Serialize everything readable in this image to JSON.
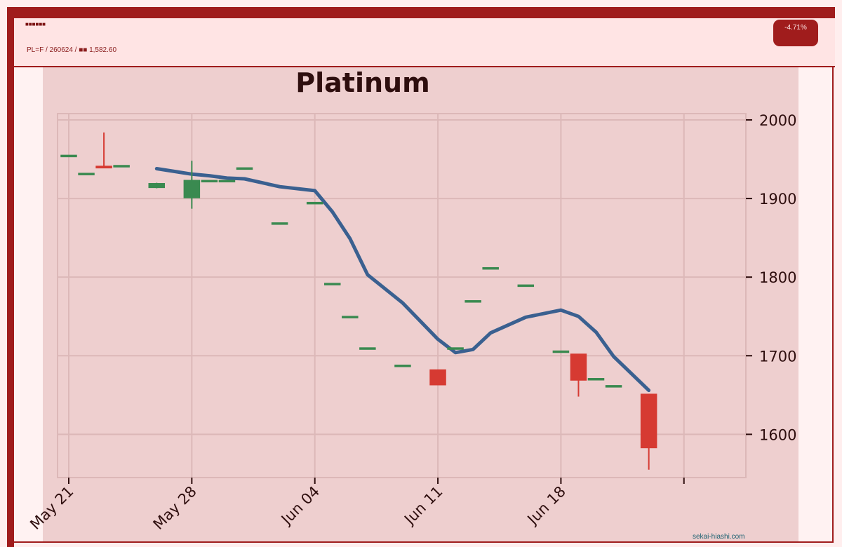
{
  "header": {
    "title": "■■■■■■",
    "subtitle": "PL=F / 260624 / ■■ 1,582.60",
    "change_badge": "-4.71%"
  },
  "source_label": "sekai-hiashi.com",
  "colors": {
    "up": "#3a8a50",
    "down": "#d63a32",
    "moving_average": "#3a6090",
    "plot_background": "#eecfcf",
    "frame": "#a01c1c"
  },
  "chart_data": {
    "type": "candlestick",
    "title": "Platinum",
    "xlabel": "",
    "ylabel": "",
    "ylim": [
      1545,
      2008
    ],
    "yticks": [
      1600,
      1700,
      1800,
      1900,
      2000
    ],
    "xticks": [
      {
        "date": "2026-05-21",
        "label": "May 21"
      },
      {
        "date": "2026-05-28",
        "label": "May 28"
      },
      {
        "date": "2026-06-04",
        "label": "Jun 04"
      },
      {
        "date": "2026-06-11",
        "label": "Jun 11"
      },
      {
        "date": "2026-06-18",
        "label": "Jun 18"
      },
      {
        "date": "2026-06-25",
        "label": ""
      }
    ],
    "grid": true,
    "candles": [
      {
        "date": "2026-05-21",
        "open": 1955,
        "high": 1955,
        "low": 1955,
        "close": 1955
      },
      {
        "date": "2026-05-22",
        "open": 1932,
        "high": 1932,
        "low": 1932,
        "close": 1932
      },
      {
        "date": "2026-05-23",
        "open": 1941,
        "high": 1984,
        "low": 1939,
        "close": 1939
      },
      {
        "date": "2026-05-24",
        "open": 1942,
        "high": 1942,
        "low": 1942,
        "close": 1942
      },
      {
        "date": "2026-05-26",
        "open": 1914,
        "high": 1920,
        "low": 1913,
        "close": 1919
      },
      {
        "date": "2026-05-28",
        "open": 1901,
        "high": 1948,
        "low": 1887,
        "close": 1923
      },
      {
        "date": "2026-05-29",
        "open": 1923,
        "high": 1923,
        "low": 1923,
        "close": 1923
      },
      {
        "date": "2026-05-30",
        "open": 1923,
        "high": 1923,
        "low": 1923,
        "close": 1923
      },
      {
        "date": "2026-05-31",
        "open": 1939,
        "high": 1939,
        "low": 1939,
        "close": 1939
      },
      {
        "date": "2026-06-02",
        "open": 1869,
        "high": 1869,
        "low": 1869,
        "close": 1869
      },
      {
        "date": "2026-06-04",
        "open": 1895,
        "high": 1895,
        "low": 1895,
        "close": 1895
      },
      {
        "date": "2026-06-05",
        "open": 1792,
        "high": 1792,
        "low": 1792,
        "close": 1792
      },
      {
        "date": "2026-06-06",
        "open": 1750,
        "high": 1750,
        "low": 1750,
        "close": 1750
      },
      {
        "date": "2026-06-07",
        "open": 1710,
        "high": 1710,
        "low": 1710,
        "close": 1710
      },
      {
        "date": "2026-06-09",
        "open": 1688,
        "high": 1688,
        "low": 1688,
        "close": 1688
      },
      {
        "date": "2026-06-11",
        "open": 1682,
        "high": 1682,
        "low": 1663,
        "close": 1663
      },
      {
        "date": "2026-06-12",
        "open": 1710,
        "high": 1710,
        "low": 1710,
        "close": 1710
      },
      {
        "date": "2026-06-13",
        "open": 1770,
        "high": 1770,
        "low": 1770,
        "close": 1770
      },
      {
        "date": "2026-06-14",
        "open": 1812,
        "high": 1812,
        "low": 1812,
        "close": 1812
      },
      {
        "date": "2026-06-16",
        "open": 1790,
        "high": 1790,
        "low": 1790,
        "close": 1790
      },
      {
        "date": "2026-06-18",
        "open": 1706,
        "high": 1706,
        "low": 1706,
        "close": 1706
      },
      {
        "date": "2026-06-19",
        "open": 1702,
        "high": 1702,
        "low": 1648,
        "close": 1669
      },
      {
        "date": "2026-06-20",
        "open": 1671,
        "high": 1671,
        "low": 1671,
        "close": 1671
      },
      {
        "date": "2026-06-21",
        "open": 1662,
        "high": 1662,
        "low": 1662,
        "close": 1662
      },
      {
        "date": "2026-06-23",
        "open": 1651,
        "high": 1651,
        "low": 1555,
        "close": 1583
      }
    ],
    "moving_average": [
      {
        "date": "2026-05-26",
        "value": 1938
      },
      {
        "date": "2026-05-28",
        "value": 1931
      },
      {
        "date": "2026-05-29",
        "value": 1929
      },
      {
        "date": "2026-05-30",
        "value": 1926
      },
      {
        "date": "2026-05-31",
        "value": 1925
      },
      {
        "date": "2026-06-02",
        "value": 1915
      },
      {
        "date": "2026-06-04",
        "value": 1910
      },
      {
        "date": "2026-06-05",
        "value": 1883
      },
      {
        "date": "2026-06-06",
        "value": 1849
      },
      {
        "date": "2026-06-07",
        "value": 1803
      },
      {
        "date": "2026-06-09",
        "value": 1767
      },
      {
        "date": "2026-06-11",
        "value": 1721
      },
      {
        "date": "2026-06-12",
        "value": 1704
      },
      {
        "date": "2026-06-13",
        "value": 1708
      },
      {
        "date": "2026-06-14",
        "value": 1729
      },
      {
        "date": "2026-06-16",
        "value": 1749
      },
      {
        "date": "2026-06-18",
        "value": 1758
      },
      {
        "date": "2026-06-19",
        "value": 1750
      },
      {
        "date": "2026-06-20",
        "value": 1730
      },
      {
        "date": "2026-06-21",
        "value": 1699
      },
      {
        "date": "2026-06-23",
        "value": 1656
      }
    ]
  }
}
